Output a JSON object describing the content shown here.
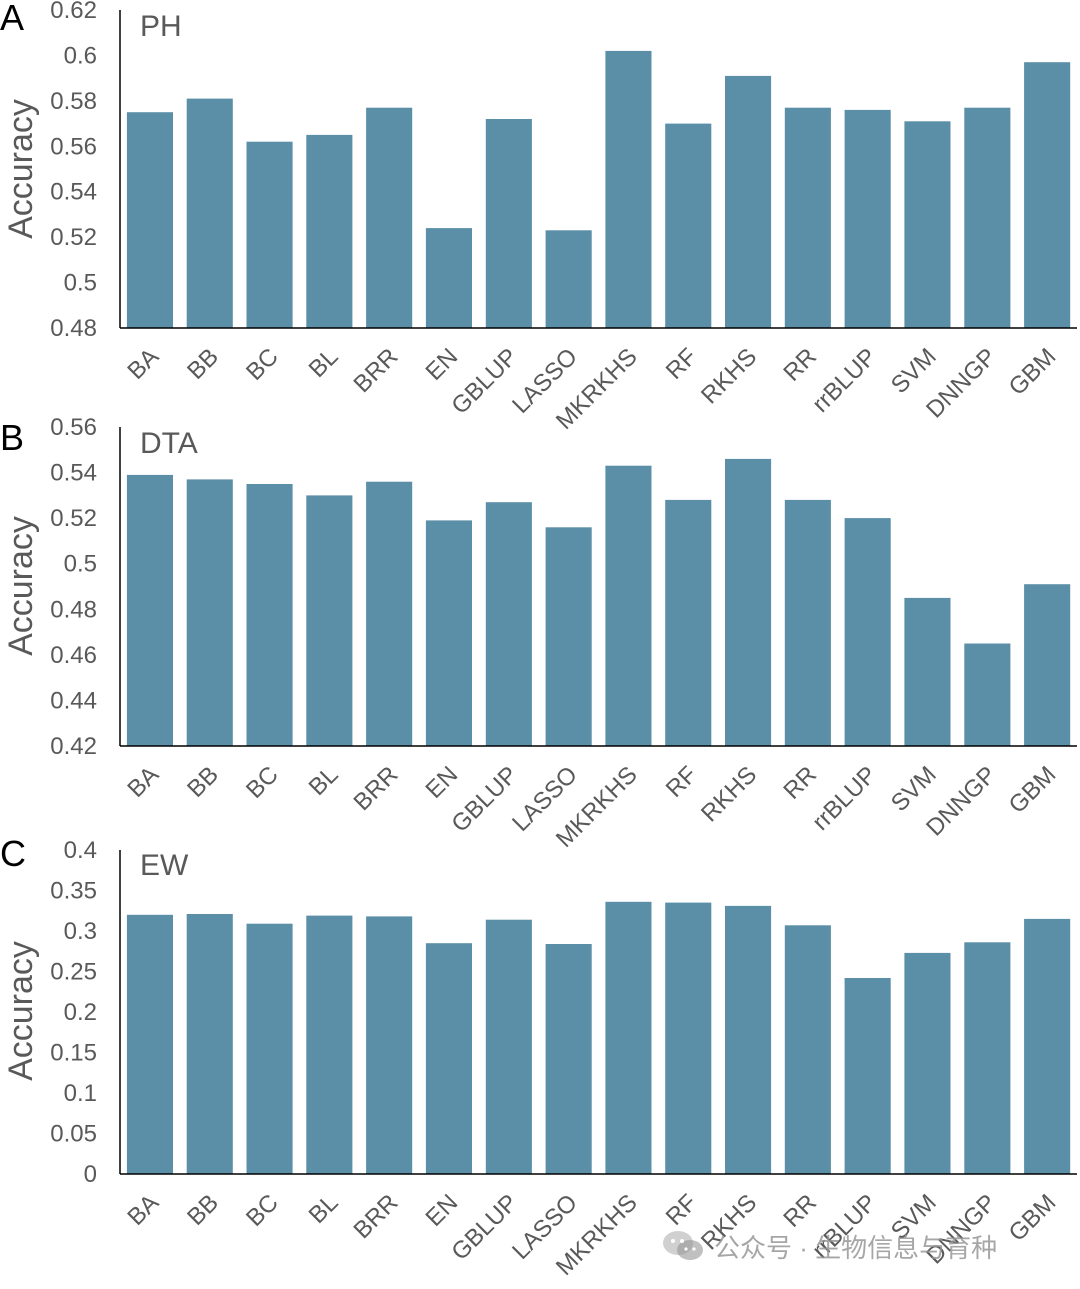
{
  "colors": {
    "bar": "#5b8fa8",
    "axis": "#000000",
    "text": "#595959",
    "panel_letter": "#000000"
  },
  "chart_data": [
    {
      "panel": "A",
      "type": "bar",
      "title": "PH",
      "ylabel": "Accuracy",
      "xlabel": "",
      "ylim": [
        0.48,
        0.62
      ],
      "yticks": [
        "0.48",
        "0.5",
        "0.52",
        "0.54",
        "0.56",
        "0.58",
        "0.6",
        "0.62"
      ],
      "categories": [
        "BA",
        "BB",
        "BC",
        "BL",
        "BRR",
        "EN",
        "GBLUP",
        "LASSO",
        "MKRKHS",
        "RF",
        "RKHS",
        "RR",
        "rrBLUP",
        "SVM",
        "DNNGP",
        "GBM"
      ],
      "values": [
        0.575,
        0.581,
        0.562,
        0.565,
        0.577,
        0.524,
        0.572,
        0.523,
        0.602,
        0.57,
        0.591,
        0.577,
        0.576,
        0.571,
        0.577,
        0.597
      ],
      "grid": false
    },
    {
      "panel": "B",
      "type": "bar",
      "title": "DTA",
      "ylabel": "Accuracy",
      "xlabel": "",
      "ylim": [
        0.42,
        0.56
      ],
      "yticks": [
        "0.42",
        "0.44",
        "0.46",
        "0.48",
        "0.5",
        "0.52",
        "0.54",
        "0.56"
      ],
      "categories": [
        "BA",
        "BB",
        "BC",
        "BL",
        "BRR",
        "EN",
        "GBLUP",
        "LASSO",
        "MKRKHS",
        "RF",
        "RKHS",
        "RR",
        "rrBLUP",
        "SVM",
        "DNNGP",
        "GBM"
      ],
      "values": [
        0.539,
        0.537,
        0.535,
        0.53,
        0.536,
        0.519,
        0.527,
        0.516,
        0.543,
        0.528,
        0.546,
        0.528,
        0.52,
        0.485,
        0.465,
        0.491
      ],
      "grid": false
    },
    {
      "panel": "C",
      "type": "bar",
      "title": "EW",
      "ylabel": "Accuracy",
      "xlabel": "",
      "ylim": [
        0,
        0.4
      ],
      "yticks": [
        "0",
        "0.05",
        "0.1",
        "0.15",
        "0.2",
        "0.25",
        "0.3",
        "0.35",
        "0.4"
      ],
      "categories": [
        "BA",
        "BB",
        "BC",
        "BL",
        "BRR",
        "EN",
        "GBLUP",
        "LASSO",
        "MKRKHS",
        "RF",
        "RKHS",
        "RR",
        "rrBLUP",
        "SVM",
        "DNNGP",
        "GBM"
      ],
      "values": [
        0.32,
        0.321,
        0.309,
        0.319,
        0.318,
        0.285,
        0.314,
        0.284,
        0.336,
        0.335,
        0.331,
        0.307,
        0.242,
        0.273,
        0.286,
        0.315
      ],
      "grid": false
    }
  ],
  "watermark": {
    "text": "公众号 · 生物信息与育种",
    "icon": "wechat-icon"
  }
}
